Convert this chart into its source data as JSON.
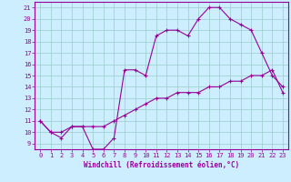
{
  "xlabel": "Windchill (Refroidissement éolien,°C)",
  "bg_color": "#cceeff",
  "line_color": "#990099",
  "grid_color": "#99cccc",
  "xlim": [
    -0.5,
    23.5
  ],
  "ylim": [
    8.5,
    21.5
  ],
  "xticks": [
    0,
    1,
    2,
    3,
    4,
    5,
    6,
    7,
    8,
    9,
    10,
    11,
    12,
    13,
    14,
    15,
    16,
    17,
    18,
    19,
    20,
    21,
    22,
    23
  ],
  "yticks": [
    9,
    10,
    11,
    12,
    13,
    14,
    15,
    16,
    17,
    18,
    19,
    20,
    21
  ],
  "curve1_x": [
    0,
    1,
    2,
    3,
    4,
    5,
    6,
    7,
    8,
    9,
    10,
    11,
    12,
    13,
    14,
    15,
    16,
    17,
    18,
    19,
    20,
    21,
    22,
    23
  ],
  "curve1_y": [
    11.0,
    10.0,
    9.5,
    10.5,
    10.5,
    8.5,
    8.5,
    9.5,
    15.5,
    15.5,
    15.0,
    18.5,
    19.0,
    19.0,
    18.5,
    20.0,
    21.0,
    21.0,
    20.0,
    19.5,
    19.0,
    17.0,
    15.0,
    14.0
  ],
  "curve2_x": [
    0,
    1,
    2,
    3,
    4,
    5,
    6,
    7,
    8,
    9,
    10,
    11,
    12,
    13,
    14,
    15,
    16,
    17,
    18,
    19,
    20,
    21,
    22,
    23
  ],
  "curve2_y": [
    11.0,
    10.0,
    10.0,
    10.5,
    10.5,
    10.5,
    10.5,
    11.0,
    11.5,
    12.0,
    12.5,
    13.0,
    13.0,
    13.5,
    13.5,
    13.5,
    14.0,
    14.0,
    14.5,
    14.5,
    15.0,
    15.0,
    15.5,
    13.5
  ],
  "tick_fontsize": 5.0,
  "xlabel_fontsize": 5.5
}
